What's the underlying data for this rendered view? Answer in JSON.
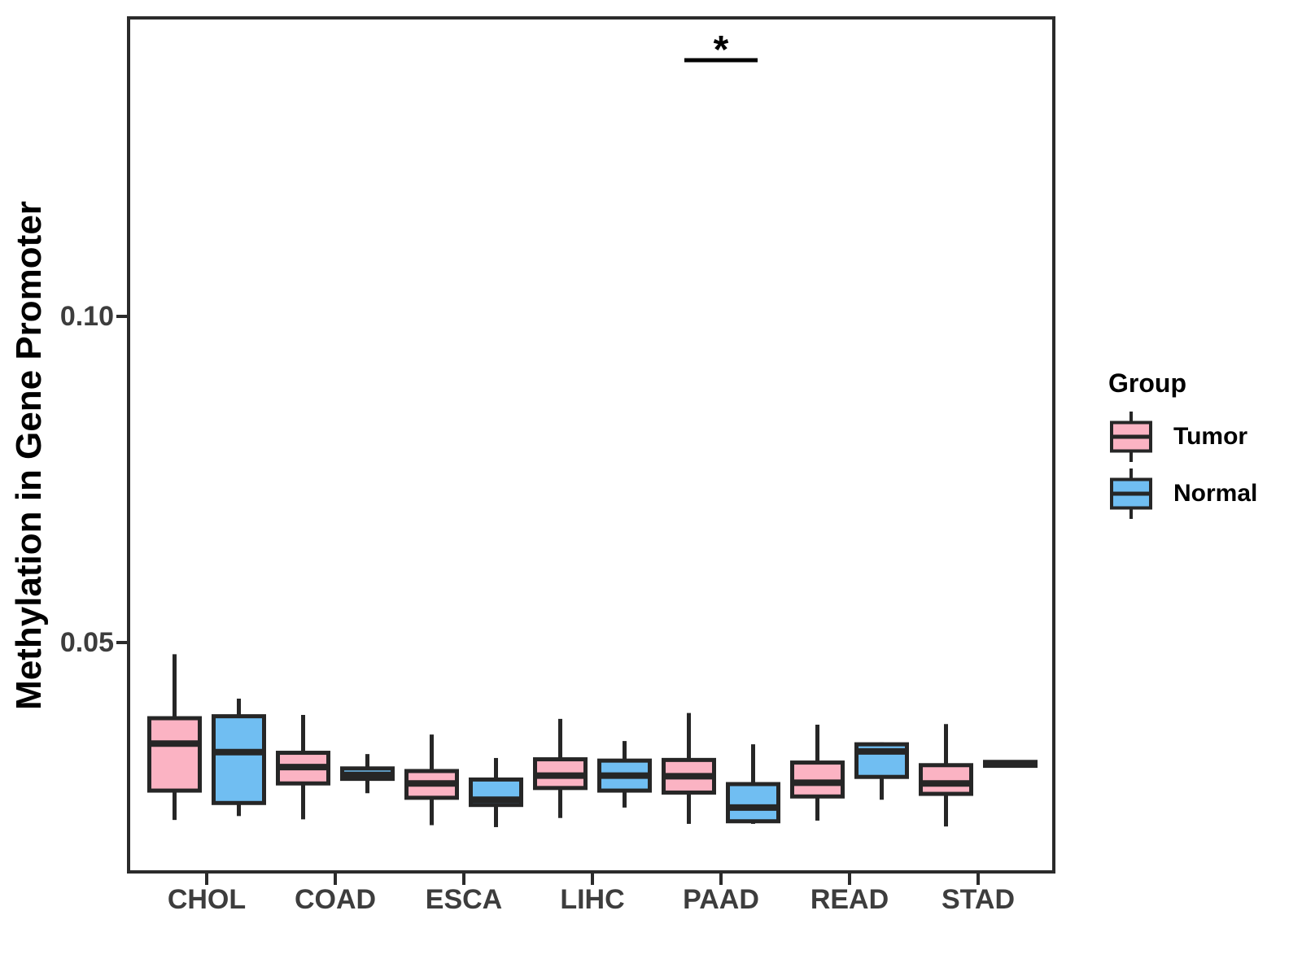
{
  "y_axis": {
    "label": "Methylation in Gene Promoter",
    "ticks": [
      "0.05",
      "0.10"
    ]
  },
  "x_axis": {
    "categories": [
      "CHOL",
      "COAD",
      "ESCA",
      "LIHC",
      "PAAD",
      "READ",
      "STAD"
    ]
  },
  "legend": {
    "title": "Group",
    "items": [
      {
        "label": "Tumor",
        "color": "#FBB3C3"
      },
      {
        "label": "Normal",
        "color": "#70BEF2"
      }
    ]
  },
  "annotation": {
    "symbol": "*",
    "group": "PAAD"
  },
  "colors": {
    "tumor_fill": "#FBB3C3",
    "normal_fill": "#70BEF2",
    "box_stroke": "#262626",
    "axis_text": "#3d3d3d",
    "panel_border": "#2b2b2b",
    "significance": "#000000"
  },
  "chart_data": {
    "type": "boxplot",
    "title": "",
    "xlabel": "",
    "ylabel": "Methylation in Gene Promoter",
    "categories": [
      "CHOL",
      "COAD",
      "ESCA",
      "LIHC",
      "PAAD",
      "READ",
      "STAD"
    ],
    "yticks": [
      0.05,
      0.1
    ],
    "ylim": [
      0.015,
      0.146
    ],
    "grid": false,
    "legend_position": "right",
    "series": [
      {
        "name": "Tumor",
        "color": "#FBB3C3",
        "boxes": [
          {
            "category": "CHOL",
            "low": 0.0228,
            "q1": 0.0273,
            "median": 0.0345,
            "q3": 0.0384,
            "high": 0.0482
          },
          {
            "category": "COAD",
            "low": 0.0229,
            "q1": 0.0284,
            "median": 0.0309,
            "q3": 0.0331,
            "high": 0.0389
          },
          {
            "category": "ESCA",
            "low": 0.022,
            "q1": 0.0262,
            "median": 0.0284,
            "q3": 0.0303,
            "high": 0.0359
          },
          {
            "category": "LIHC",
            "low": 0.0231,
            "q1": 0.0277,
            "median": 0.0296,
            "q3": 0.0321,
            "high": 0.0383
          },
          {
            "category": "PAAD",
            "low": 0.0222,
            "q1": 0.027,
            "median": 0.0295,
            "q3": 0.032,
            "high": 0.0392
          },
          {
            "category": "READ",
            "low": 0.0227,
            "q1": 0.0264,
            "median": 0.0285,
            "q3": 0.0316,
            "high": 0.0374
          },
          {
            "category": "STAD",
            "low": 0.0218,
            "q1": 0.0268,
            "median": 0.0284,
            "q3": 0.0312,
            "high": 0.0375
          }
        ]
      },
      {
        "name": "Normal",
        "color": "#70BEF2",
        "boxes": [
          {
            "category": "CHOL",
            "low": 0.0234,
            "q1": 0.0254,
            "median": 0.0332,
            "q3": 0.0387,
            "high": 0.0414
          },
          {
            "category": "COAD",
            "low": 0.0269,
            "q1": 0.0291,
            "median": 0.0297,
            "q3": 0.0307,
            "high": 0.0329
          },
          {
            "category": "ESCA",
            "low": 0.0217,
            "q1": 0.0251,
            "median": 0.0259,
            "q3": 0.029,
            "high": 0.0323
          },
          {
            "category": "LIHC",
            "low": 0.0247,
            "q1": 0.0273,
            "median": 0.0296,
            "q3": 0.0319,
            "high": 0.0349
          },
          {
            "category": "PAAD",
            "low": 0.0222,
            "q1": 0.0226,
            "median": 0.0247,
            "q3": 0.0283,
            "high": 0.0344
          },
          {
            "category": "READ",
            "low": 0.0259,
            "q1": 0.0294,
            "median": 0.0333,
            "q3": 0.0344,
            "high": 0.0347
          },
          {
            "category": "STAD",
            "low": 0.031,
            "q1": 0.0311,
            "median": 0.0314,
            "q3": 0.0317,
            "high": 0.0319
          }
        ]
      }
    ],
    "significance": {
      "category": "PAAD",
      "label": "*"
    }
  }
}
